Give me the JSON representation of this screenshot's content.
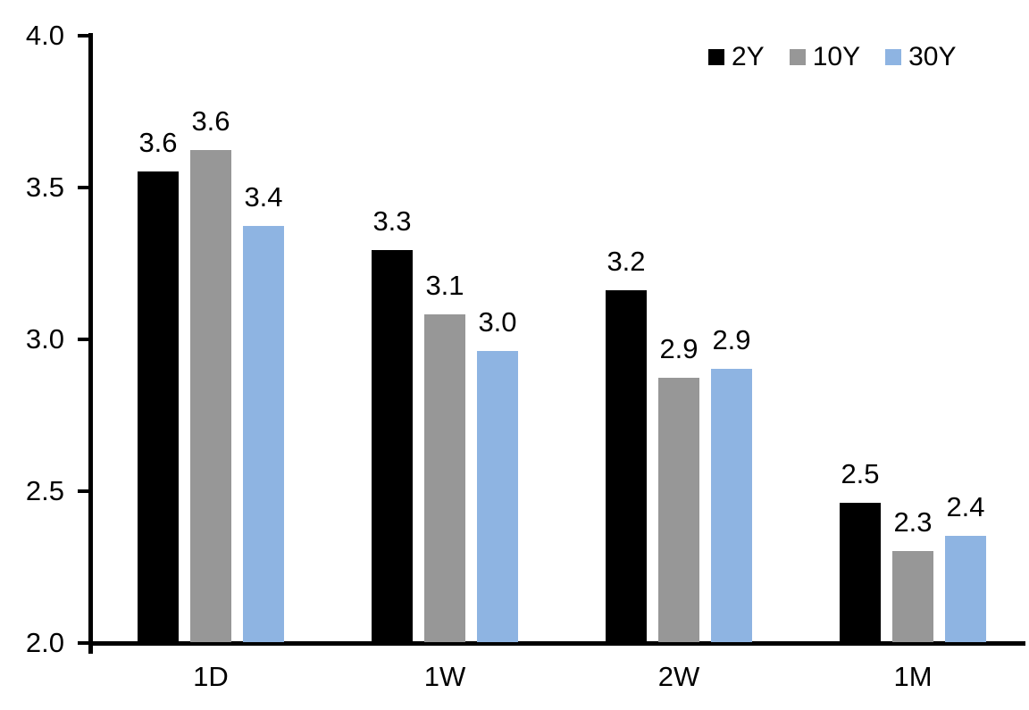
{
  "chart_data": {
    "type": "bar",
    "title": "",
    "xlabel": "",
    "ylabel": "",
    "categories": [
      "1D",
      "1W",
      "2W",
      "1M"
    ],
    "series": [
      {
        "name": "2Y",
        "color": "#000000",
        "values": [
          3.55,
          3.29,
          3.16,
          2.46
        ],
        "labels": [
          "3.6",
          "3.3",
          "3.2",
          "2.5"
        ]
      },
      {
        "name": "10Y",
        "color": "#979797",
        "values": [
          3.62,
          3.08,
          2.87,
          2.3
        ],
        "labels": [
          "3.6",
          "3.1",
          "2.9",
          "2.3"
        ]
      },
      {
        "name": "30Y",
        "color": "#8EB4E2",
        "values": [
          3.37,
          2.96,
          2.9,
          2.35
        ],
        "labels": [
          "3.4",
          "3.0",
          "2.9",
          "2.4"
        ]
      }
    ],
    "ylim": [
      2.0,
      4.0
    ],
    "yticks": [
      "2.0",
      "2.5",
      "3.0",
      "3.5",
      "4.0"
    ],
    "grid": false,
    "data_labels": true,
    "legend_position": "top-right",
    "axis_color": "#000000",
    "text_color": "#000000",
    "background_color": "#ffffff"
  }
}
